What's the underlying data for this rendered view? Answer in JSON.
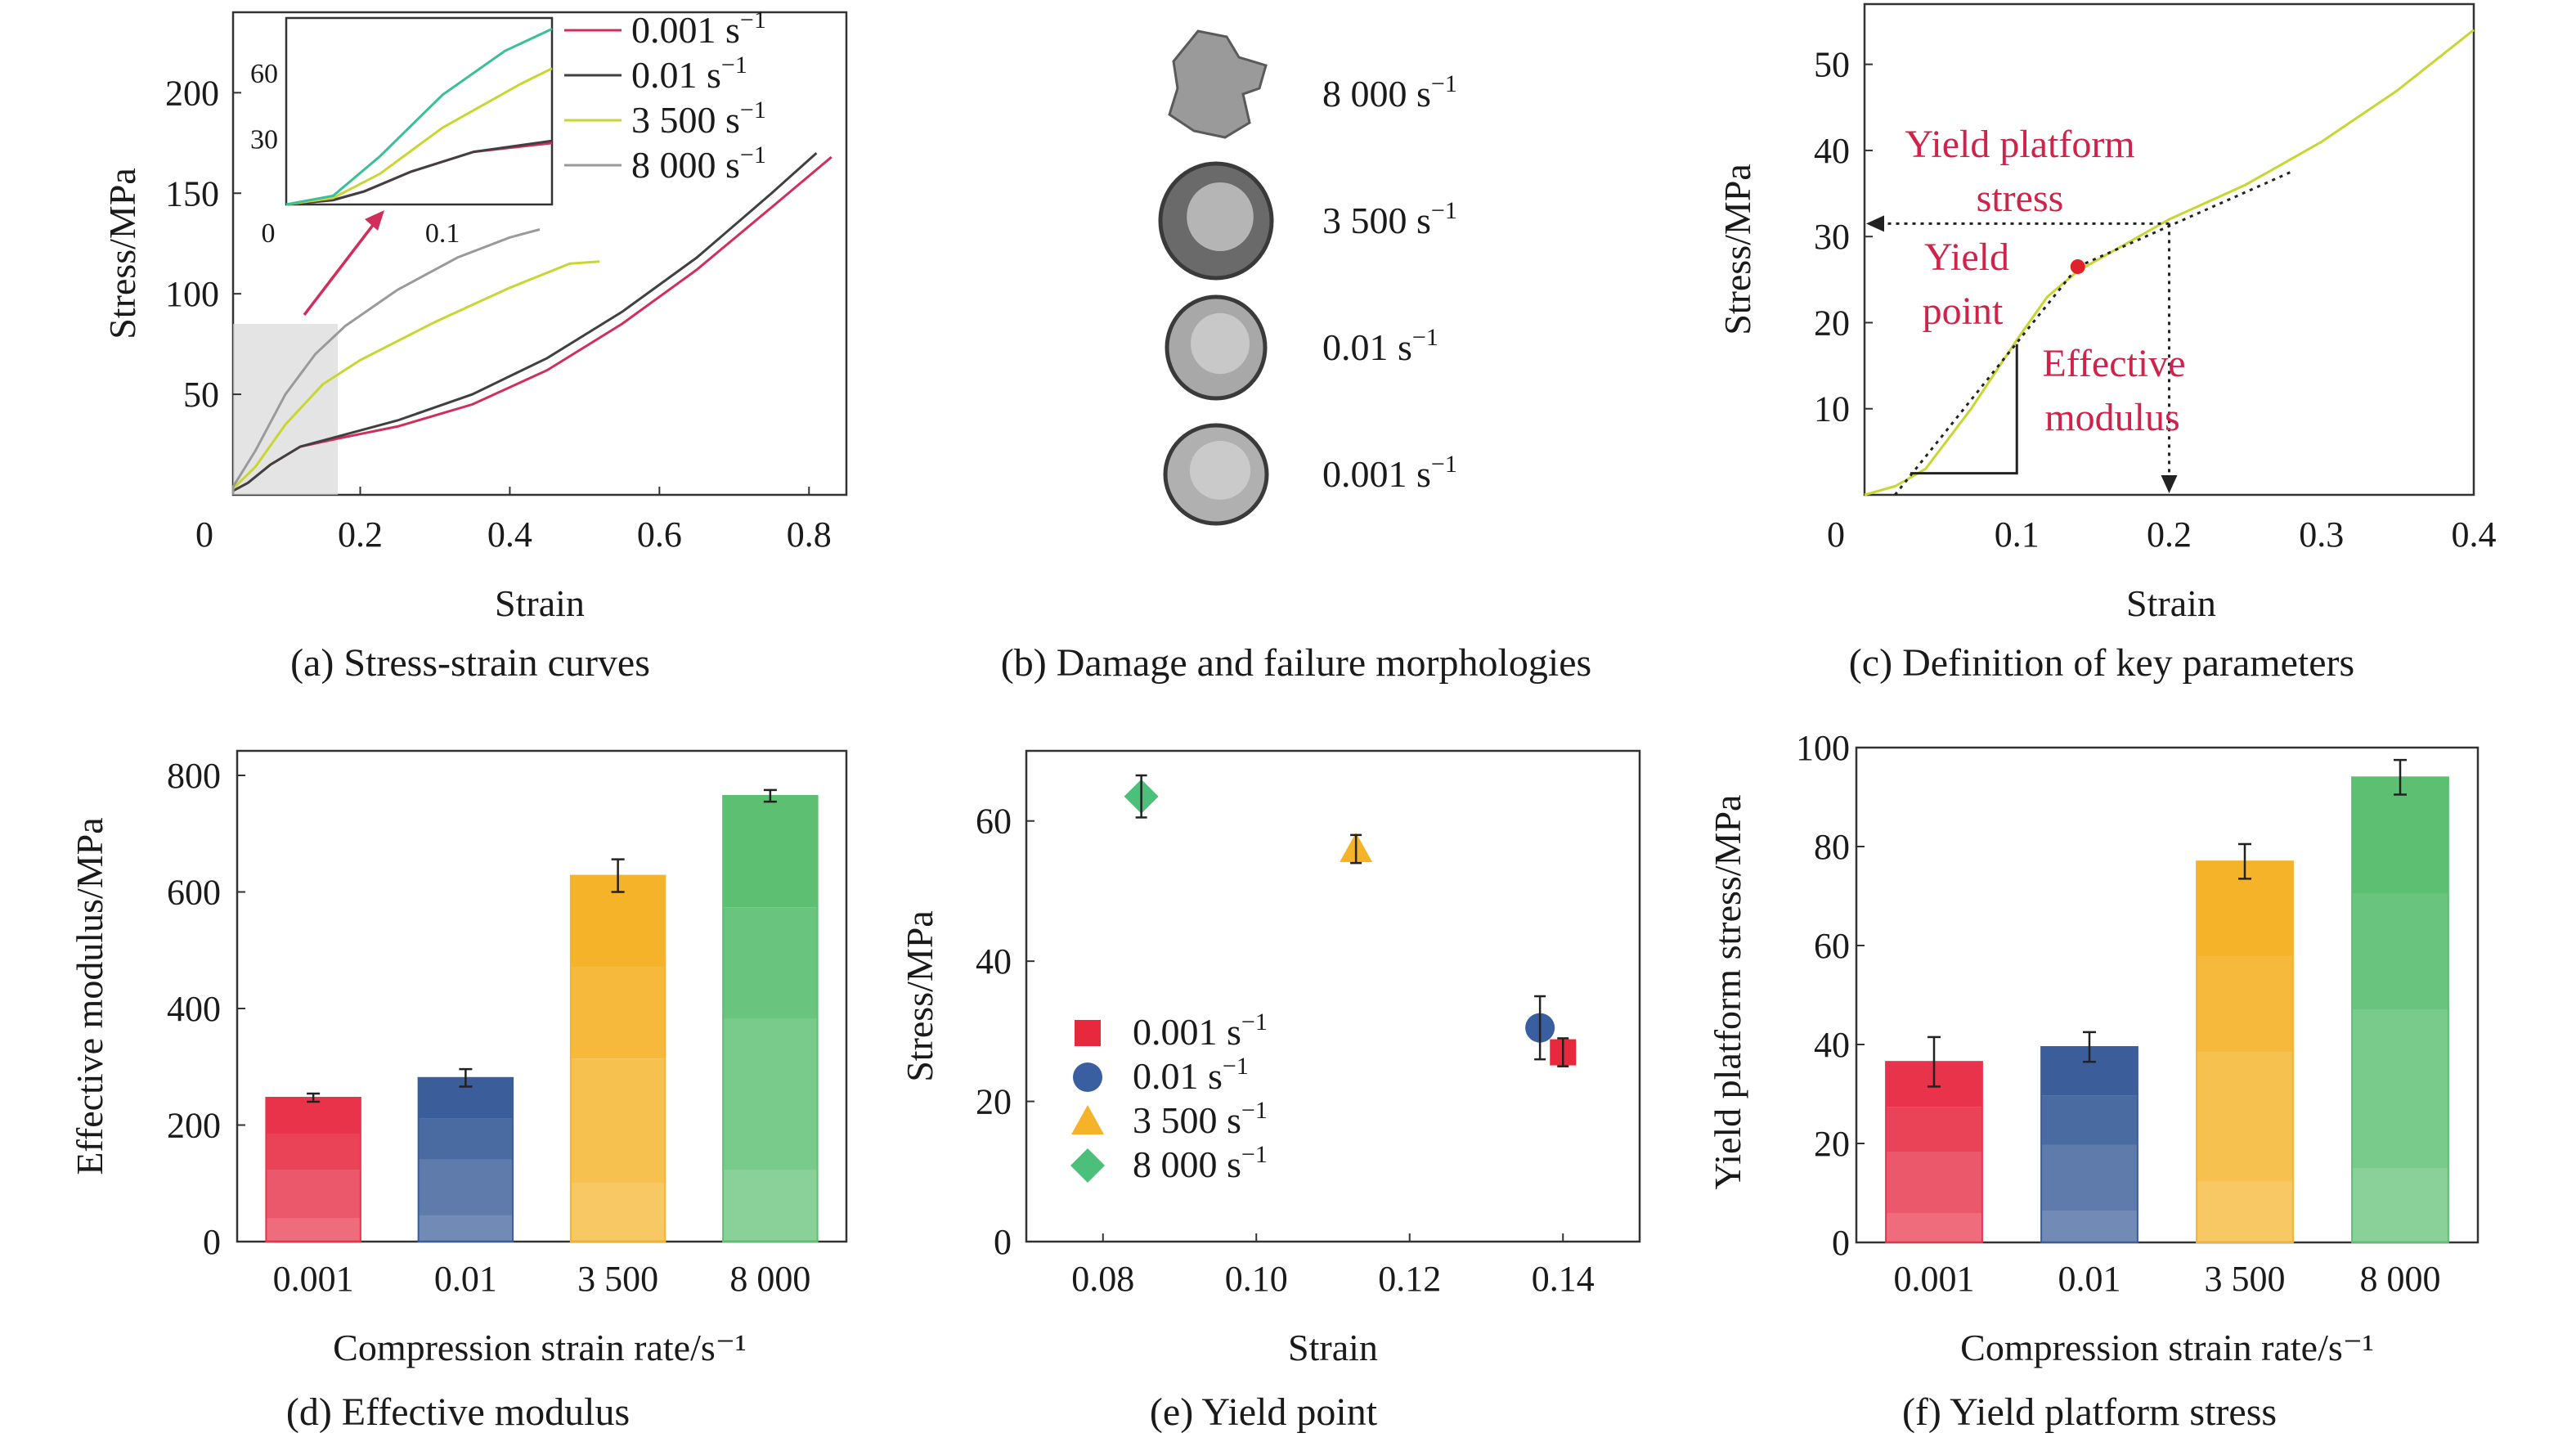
{
  "chart_data": [
    {
      "panel": "a",
      "type": "line",
      "caption": "(a) Stress-strain curves",
      "xlabel": "Strain",
      "ylabel": "Stress/MPa",
      "xlim": [
        0,
        0.85
      ],
      "ylim": [
        0,
        240
      ],
      "xticks": [
        "0",
        "0.2",
        "0.4",
        "0.6",
        "0.8"
      ],
      "yticks": [
        "50",
        "100",
        "150",
        "200"
      ],
      "series": [
        {
          "name": "0.001 s⁻¹",
          "color": "#d12e5c",
          "x": [
            0.0,
            0.03,
            0.05,
            0.08,
            0.12,
            0.17,
            0.25,
            0.35,
            0.45,
            0.55,
            0.65,
            0.75,
            0.83
          ],
          "y": [
            0,
            2,
            6,
            15,
            24,
            28,
            34,
            45,
            62,
            85,
            112,
            143,
            168
          ]
        },
        {
          "name": "0.01 s⁻¹",
          "color": "#404040",
          "x": [
            0.0,
            0.03,
            0.05,
            0.08,
            0.12,
            0.17,
            0.25,
            0.35,
            0.45,
            0.55,
            0.65,
            0.75,
            0.81
          ],
          "y": [
            0,
            2,
            6,
            15,
            24,
            29,
            37,
            50,
            68,
            91,
            118,
            150,
            170
          ]
        },
        {
          "name": "3 500 s⁻¹",
          "color": "#c8d632",
          "x": [
            0.0,
            0.03,
            0.06,
            0.1,
            0.15,
            0.2,
            0.3,
            0.4,
            0.48,
            0.52
          ],
          "y": [
            0,
            3,
            14,
            35,
            55,
            67,
            86,
            103,
            115,
            116
          ]
        },
        {
          "name": "8 000 s⁻¹",
          "color": "#9a9a9a",
          "x": [
            0.0,
            0.03,
            0.06,
            0.1,
            0.14,
            0.18,
            0.25,
            0.33,
            0.4,
            0.44
          ],
          "y": [
            0,
            4,
            22,
            50,
            70,
            84,
            102,
            118,
            128,
            132
          ]
        }
      ],
      "inset": {
        "xticks": [
          "0",
          "0.1"
        ],
        "yticks": [
          "30",
          "60"
        ],
        "xlim": [
          0,
          0.17
        ],
        "ylim": [
          0,
          85
        ],
        "series": [
          {
            "color": "#d12e5c",
            "x": [
              0.0,
              0.03,
              0.05,
              0.08,
              0.12,
              0.17
            ],
            "y": [
              0,
              2,
              6,
              15,
              24,
              28
            ]
          },
          {
            "color": "#404040",
            "x": [
              0.0,
              0.03,
              0.05,
              0.08,
              0.12,
              0.17
            ],
            "y": [
              0,
              2,
              6,
              15,
              24,
              29
            ]
          },
          {
            "color": "#c8d632",
            "x": [
              0.0,
              0.03,
              0.06,
              0.1,
              0.15,
              0.17
            ],
            "y": [
              0,
              3,
              14,
              35,
              55,
              62
            ]
          },
          {
            "color": "#3bbf9a",
            "x": [
              0.0,
              0.03,
              0.06,
              0.1,
              0.14,
              0.17
            ],
            "y": [
              0,
              4,
              22,
              50,
              70,
              80
            ]
          }
        ]
      }
    },
    {
      "panel": "b",
      "type": "image",
      "caption": "(b) Damage and failure morphologies",
      "labels": [
        "8 000 s⁻¹",
        "3 500 s⁻¹",
        "0.01 s⁻¹",
        "0.001 s⁻¹"
      ]
    },
    {
      "panel": "c",
      "type": "line",
      "caption": "(c) Definition of key parameters",
      "xlabel": "Strain",
      "ylabel": "Stress/MPa",
      "xlim": [
        0,
        0.4
      ],
      "ylim": [
        0,
        55
      ],
      "xticks": [
        "0",
        "0.1",
        "0.2",
        "0.3",
        "0.4"
      ],
      "yticks": [
        "10",
        "20",
        "30",
        "40",
        "50"
      ],
      "series": [
        {
          "color": "#c8d632",
          "x": [
            0.0,
            0.02,
            0.04,
            0.07,
            0.1,
            0.12,
            0.14,
            0.16,
            0.2,
            0.25,
            0.3,
            0.35,
            0.4
          ],
          "y": [
            0,
            1,
            3,
            10,
            18,
            23,
            26,
            28,
            32,
            36,
            41,
            47,
            54
          ]
        }
      ],
      "yield_point": {
        "x": 0.14,
        "y": 26.5
      },
      "yield_platform_stress": 31.5,
      "annotations": [
        "Yield platform stress",
        "Yield point",
        "Effective modulus"
      ]
    },
    {
      "panel": "d",
      "type": "bar",
      "caption": "(d) Effective modulus",
      "xlabel": "Compression strain rate/s⁻¹",
      "ylabel": "Effective modulus/MPa",
      "ylim": [
        0,
        800
      ],
      "yticks": [
        "0",
        "200",
        "400",
        "600",
        "800"
      ],
      "categories": [
        "0.001",
        "0.01",
        "3 500",
        "8 000"
      ],
      "values": [
        247,
        281,
        628,
        765
      ],
      "errors": [
        7,
        15,
        28,
        10
      ],
      "colors": [
        "#e8334a",
        "#3b5e9a",
        "#f5b32a",
        "#5cbf72"
      ]
    },
    {
      "panel": "e",
      "type": "scatter",
      "caption": "(e) Yield point",
      "xlabel": "Strain",
      "ylabel": "Stress/MPa",
      "xlim": [
        0.07,
        0.15
      ],
      "ylim": [
        0,
        70
      ],
      "xticks": [
        "0.08",
        "0.10",
        "0.12",
        "0.14"
      ],
      "yticks": [
        "0",
        "20",
        "40",
        "60"
      ],
      "series": [
        {
          "name": "0.001 s⁻¹",
          "marker": "square",
          "color": "#e8283c",
          "x": [
            0.14
          ],
          "y": [
            27
          ],
          "yerr": [
            2
          ]
        },
        {
          "name": "0.01 s⁻¹",
          "marker": "circle",
          "color": "#3a5fa0",
          "x": [
            0.137
          ],
          "y": [
            30.5
          ],
          "yerr": [
            4.5
          ]
        },
        {
          "name": "3 500 s⁻¹",
          "marker": "triangle",
          "color": "#f5b32a",
          "x": [
            0.113
          ],
          "y": [
            56
          ],
          "yerr": [
            2
          ]
        },
        {
          "name": "8 000 s⁻¹",
          "marker": "diamond",
          "color": "#4cbf7a",
          "x": [
            0.085
          ],
          "y": [
            63.5
          ],
          "yerr": [
            3
          ]
        }
      ]
    },
    {
      "panel": "f",
      "type": "bar",
      "caption": "(f) Yield platform stress",
      "xlabel": "Compression strain rate/s⁻¹",
      "ylabel": "Yield platform stress/MPa",
      "ylim": [
        0,
        100
      ],
      "yticks": [
        "0",
        "20",
        "40",
        "60",
        "80",
        "100"
      ],
      "categories": [
        "0.001",
        "0.01",
        "3 500",
        "8 000"
      ],
      "values": [
        36.5,
        39.5,
        77,
        94
      ],
      "errors": [
        5,
        3,
        3.5,
        3.5
      ],
      "colors": [
        "#e8334a",
        "#3b5e9a",
        "#f5b32a",
        "#5cbf72"
      ]
    }
  ]
}
